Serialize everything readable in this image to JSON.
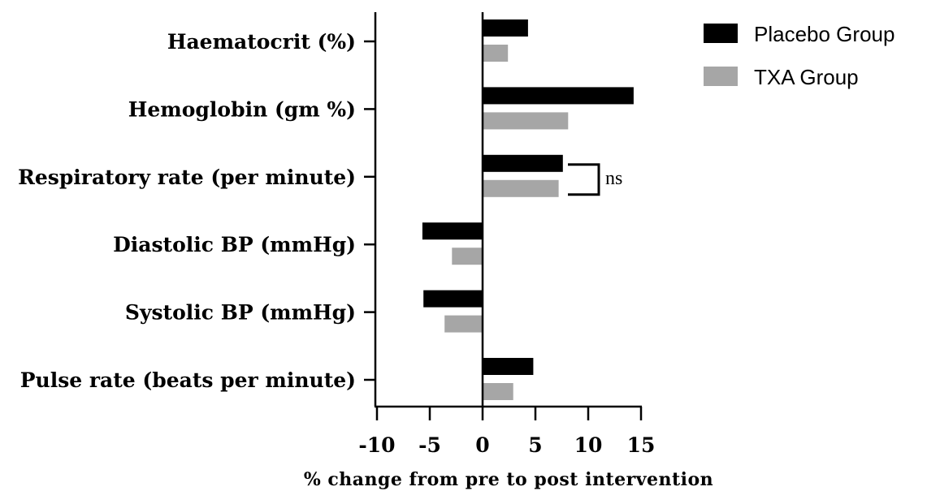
{
  "chart_data": {
    "type": "bar",
    "orientation": "horizontal",
    "categories": [
      "Haematocrit (%)",
      "Hemoglobin (gm %)",
      "Respiratory rate (per minute)",
      "Diastolic BP (mmHg)",
      "Systolic BP (mmHg)",
      "Pulse rate (beats per minute)"
    ],
    "series": [
      {
        "name": "Placebo Group",
        "color": "#000000",
        "values": [
          4.3,
          14.3,
          7.6,
          -5.7,
          -5.6,
          4.8
        ]
      },
      {
        "name": "TXA Group",
        "color": "#a6a6a6",
        "values": [
          2.4,
          8.1,
          7.2,
          -2.9,
          -3.6,
          2.9
        ]
      }
    ],
    "xlabel": "% change from pre to post intervention",
    "ylabel": "",
    "title": "",
    "xlim": [
      -10,
      15
    ],
    "xticks": [
      -10,
      -5,
      0,
      5,
      10,
      15
    ],
    "grid": false,
    "legend": "top-right",
    "annotations": [
      {
        "text": "ns",
        "category": "Respiratory rate (per minute)",
        "type": "bracket"
      }
    ]
  }
}
